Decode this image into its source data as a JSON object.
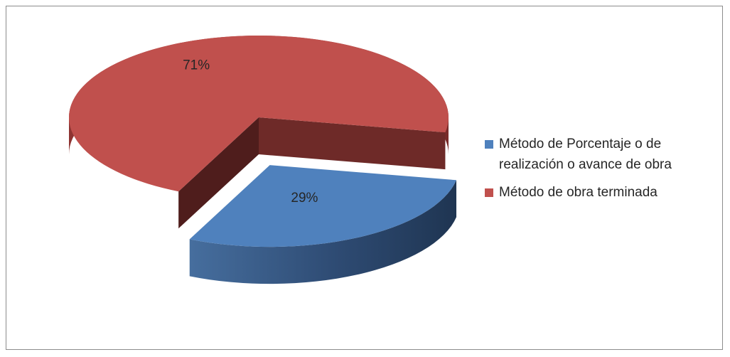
{
  "chart_data": {
    "type": "pie",
    "style": "3d-exploded",
    "title": "",
    "legend_position": "right",
    "slices": [
      {
        "name": "Método de Porcentaje o de realización o avance de obra",
        "value": 29,
        "label": "29%",
        "color": "#4f81bd"
      },
      {
        "name": "Método de obra terminada",
        "value": 71,
        "label": "71%",
        "color": "#c0504d"
      }
    ]
  }
}
